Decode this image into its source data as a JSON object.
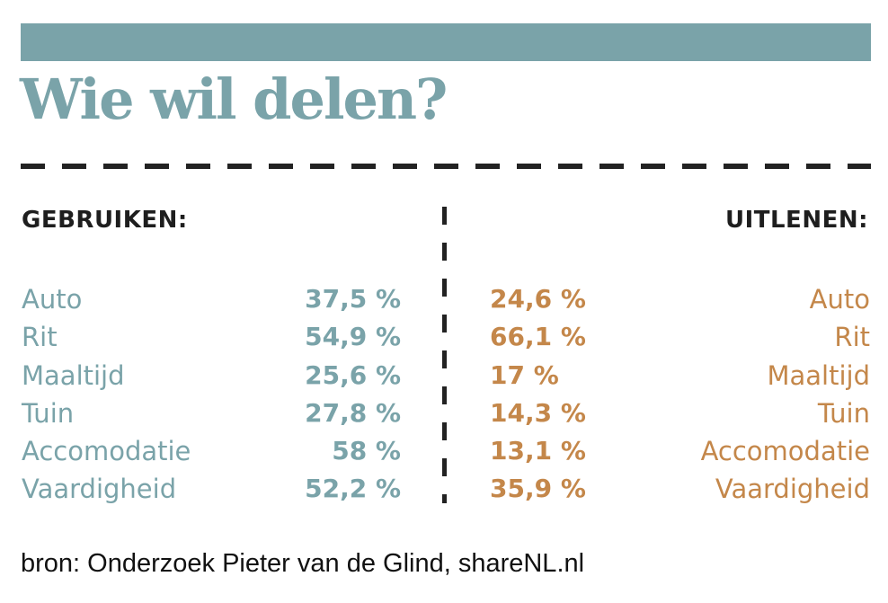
{
  "colors": {
    "accent_teal": "#7aa3a9",
    "accent_orange": "#c4874a",
    "text_dark": "#1e1e1e"
  },
  "chart_data": {
    "type": "table",
    "title": "Wie wil delen?",
    "left_heading": "GEBRUIKEN:",
    "right_heading": "UITLENEN:",
    "categories": [
      "Auto",
      "Rit",
      "Maaltijd",
      "Tuin",
      "Accomodatie",
      "Vaardigheid"
    ],
    "gebruiken": [
      {
        "label": "Auto",
        "value": 37.5,
        "display": "37,5 %"
      },
      {
        "label": "Rit",
        "value": 54.9,
        "display": "54,9 %"
      },
      {
        "label": "Maaltijd",
        "value": 25.6,
        "display": "25,6 %"
      },
      {
        "label": "Tuin",
        "value": 27.8,
        "display": "27,8 %"
      },
      {
        "label": "Accomodatie",
        "value": 58,
        "display": "58 %"
      },
      {
        "label": "Vaardigheid",
        "value": 52.2,
        "display": "52,2 %"
      }
    ],
    "uitlenen": [
      {
        "label": "Auto",
        "value": 24.6,
        "display": "24,6 %"
      },
      {
        "label": "Rit",
        "value": 66.1,
        "display": "66,1 %"
      },
      {
        "label": "Maaltijd",
        "value": 17,
        "display": "17 %"
      },
      {
        "label": "Tuin",
        "value": 14.3,
        "display": "14,3 %"
      },
      {
        "label": "Accomodatie",
        "value": 13.1,
        "display": "13,1 %"
      },
      {
        "label": "Vaardigheid",
        "value": 35.9,
        "display": "35,9 %"
      }
    ],
    "source": "bron: Onderzoek Pieter van de Glind, shareNL.nl"
  }
}
